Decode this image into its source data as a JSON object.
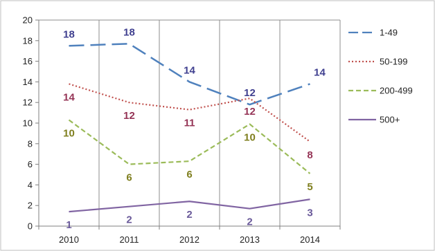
{
  "chart_data": {
    "type": "line",
    "title": "",
    "xlabel": "",
    "ylabel": "",
    "x": [
      "2010",
      "2011",
      "2012",
      "2013",
      "2014"
    ],
    "ylim": [
      0,
      20
    ],
    "yticks": [
      "0",
      "2",
      "4",
      "6",
      "8",
      "10",
      "12",
      "14",
      "16",
      "18",
      "20"
    ],
    "grid": "vertical",
    "legend": "right",
    "series": [
      {
        "name": "1-49",
        "color": "#4f81bd",
        "label_color": "#3f3f8f",
        "dash": "long-dash",
        "values": [
          17.5,
          17.7,
          14.0,
          11.8,
          13.8
        ],
        "labels": [
          "18",
          "18",
          "14",
          "12",
          "14"
        ],
        "label_pos": "above"
      },
      {
        "name": "50-199",
        "color": "#c0504d",
        "label_color": "#953456",
        "dash": "dotted",
        "values": [
          13.8,
          12.0,
          11.3,
          12.4,
          8.2
        ],
        "labels": [
          "14",
          "12",
          "11",
          "12",
          "8"
        ],
        "label_pos": "below"
      },
      {
        "name": "200-499",
        "color": "#9bbb59",
        "label_color": "#7f7f1f",
        "dash": "short-dash",
        "values": [
          10.3,
          6.0,
          6.3,
          9.9,
          5.1
        ],
        "labels": [
          "10",
          "6",
          "6",
          "10",
          "5"
        ],
        "label_pos": "below"
      },
      {
        "name": "500+",
        "color": "#8064a2",
        "label_color": "#6a5a9a",
        "dash": "solid",
        "values": [
          1.4,
          1.9,
          2.4,
          1.7,
          2.6
        ],
        "labels": [
          "1",
          "2",
          "2",
          "2",
          "3"
        ],
        "label_pos": "below"
      }
    ]
  }
}
